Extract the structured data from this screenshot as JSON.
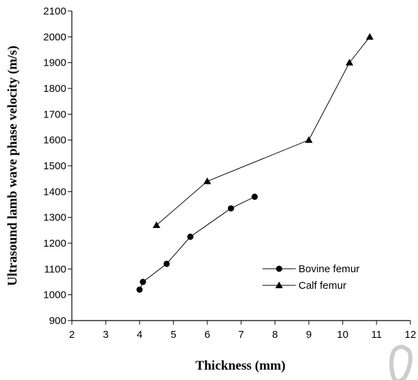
{
  "chart_data": {
    "type": "line",
    "xlabel": "Thickness (mm)",
    "ylabel": "Ultrasound lamb wave phase velocity (m/s)",
    "xlim": [
      2,
      12
    ],
    "ylim": [
      900,
      2100
    ],
    "x_ticks": [
      2,
      3,
      4,
      5,
      6,
      7,
      8,
      9,
      10,
      11,
      12
    ],
    "y_ticks": [
      900,
      1000,
      1100,
      1200,
      1300,
      1400,
      1500,
      1600,
      1700,
      1800,
      1900,
      2000,
      2100
    ],
    "grid": false,
    "legend_position": "lower-right",
    "series": [
      {
        "name": "Bovine femur",
        "marker": "circle",
        "color": "#000000",
        "x": [
          4.0,
          4.1,
          4.8,
          5.5,
          6.7,
          7.4
        ],
        "y": [
          1020,
          1050,
          1120,
          1225,
          1335,
          1380
        ]
      },
      {
        "name": "Calf femur",
        "marker": "triangle",
        "color": "#000000",
        "x": [
          4.5,
          6.0,
          9.0,
          10.2,
          10.8
        ],
        "y": [
          1270,
          1440,
          1600,
          1900,
          2000
        ]
      }
    ]
  }
}
